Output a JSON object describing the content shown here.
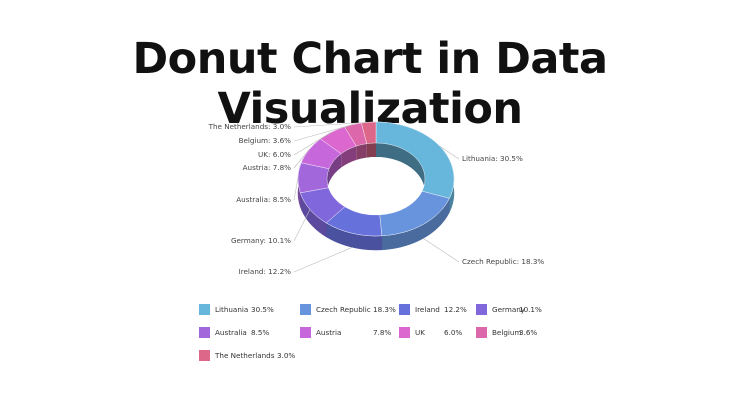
{
  "title": "Donut Chart in Data Visualization",
  "chart_data": {
    "type": "donut",
    "title": "",
    "series": [
      {
        "name": "Lithuania",
        "value": 30.5,
        "label": "Lithuania: 30.5%",
        "legend_value": "30.5%",
        "color": "#67b6dc"
      },
      {
        "name": "Czech Republic",
        "value": 18.3,
        "label": "Czech Republic: 18.3%",
        "legend_value": "18.3%",
        "color": "#6794dc"
      },
      {
        "name": "Ireland",
        "value": 12.2,
        "label": "Ireland: 12.2%",
        "legend_value": "12.2%",
        "color": "#6771dc"
      },
      {
        "name": "Germany",
        "value": 10.1,
        "label": "Germany: 10.1%",
        "legend_value": "10.1%",
        "color": "#8067dc"
      },
      {
        "name": "Australia",
        "value": 8.5,
        "label": "Australia: 8.5%",
        "legend_value": "8.5%",
        "color": "#a367dc"
      },
      {
        "name": "Austria",
        "value": 7.8,
        "label": "Austria: 7.8%",
        "legend_value": "7.8%",
        "color": "#c767dc"
      },
      {
        "name": "UK",
        "value": 6.0,
        "label": "UK: 6.0%",
        "legend_value": "6.0%",
        "color": "#dc67ce"
      },
      {
        "name": "Belgium",
        "value": 3.6,
        "label": "Belgium: 3.6%",
        "legend_value": "3.6%",
        "color": "#dc67ab"
      },
      {
        "name": "The Netherlands",
        "value": 3.0,
        "label": "The Netherlands: 3.0%",
        "legend_value": "3.0%",
        "color": "#dc6788"
      }
    ],
    "legend_position": "bottom"
  }
}
